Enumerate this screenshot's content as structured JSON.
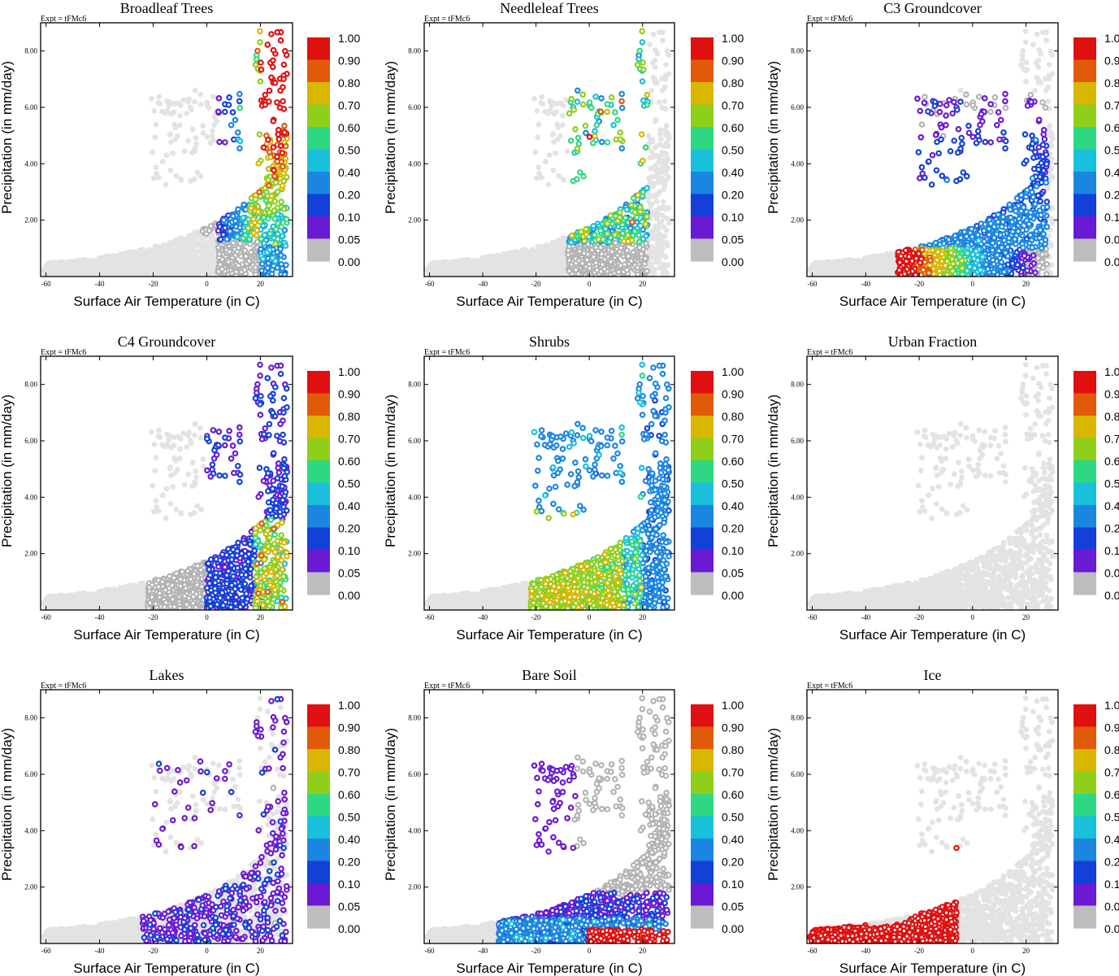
{
  "figure": {
    "expt_label": "Expt = tFMc6",
    "xlabel": "Surface Air Temperature (in C)",
    "ylabel": "Precipitation (in mm/day)",
    "xticks": [
      -60,
      -40,
      -20,
      0,
      20
    ],
    "yticks": [
      2.0,
      4.0,
      6.0,
      8.0
    ],
    "ytick_labels": [
      "2.00",
      "4.00",
      "6.00",
      "8.00"
    ],
    "xlim": [
      -62,
      32
    ],
    "ylim": [
      0,
      9
    ],
    "colorbar": {
      "levels": [
        "1.00",
        "0.90",
        "0.80",
        "0.70",
        "0.60",
        "0.50",
        "0.40",
        "0.20",
        "0.10",
        "0.05",
        "0.00"
      ],
      "colors": [
        "#e01010",
        "#e05a0a",
        "#d9b600",
        "#8fcf1a",
        "#2ed882",
        "#19c0dc",
        "#1a86e0",
        "#1240d8",
        "#6a1ad2",
        "#bdbdbd"
      ]
    },
    "background_color": "#e3e3e3",
    "zero_color": "#b3b3b3"
  },
  "chart_data": [
    {
      "type": "scatter",
      "title": "Broadleaf Trees",
      "pattern": "broadleaf"
    },
    {
      "type": "scatter",
      "title": "Needleleaf Trees",
      "pattern": "needleleaf"
    },
    {
      "type": "scatter",
      "title": "C3 Groundcover",
      "pattern": "c3"
    },
    {
      "type": "scatter",
      "title": "C4 Groundcover",
      "pattern": "c4"
    },
    {
      "type": "scatter",
      "title": "Shrubs",
      "pattern": "shrubs"
    },
    {
      "type": "scatter",
      "title": "Urban Fraction",
      "pattern": "urban"
    },
    {
      "type": "scatter",
      "title": "Lakes",
      "pattern": "lakes"
    },
    {
      "type": "scatter",
      "title": "Bare Soil",
      "pattern": "baresoil"
    },
    {
      "type": "scatter",
      "title": "Ice",
      "pattern": "ice"
    }
  ]
}
